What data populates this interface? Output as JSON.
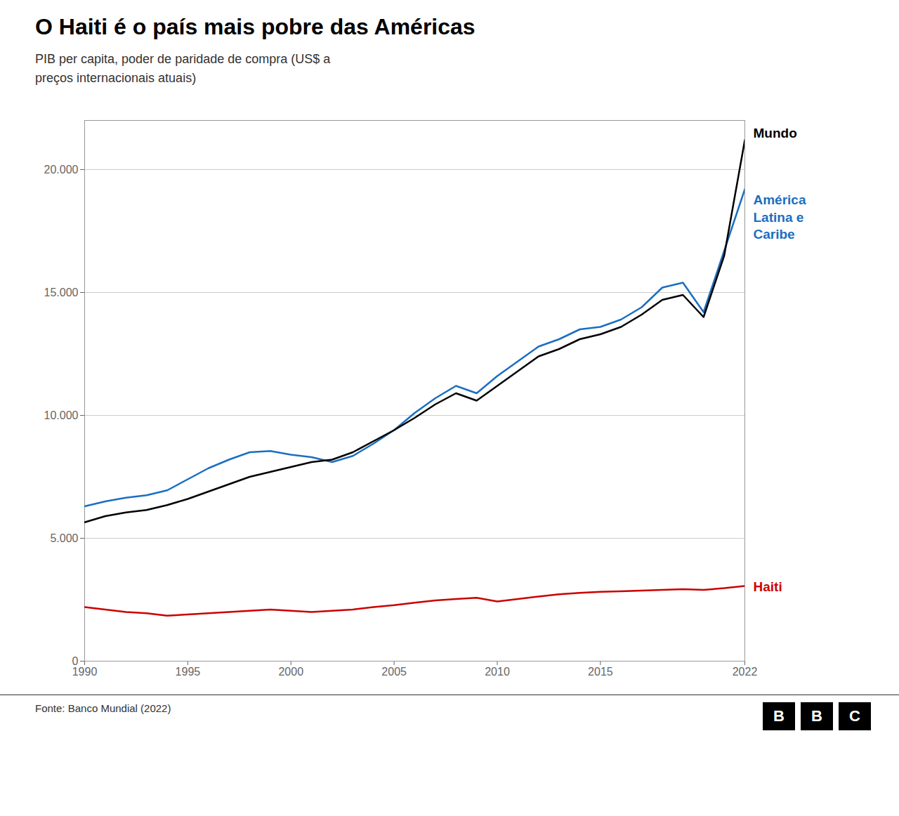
{
  "chart_data": {
    "type": "line",
    "title": "O Haiti é o país mais pobre das Américas",
    "subtitle": "PIB per capita, poder de paridade de compra (US$ a\npreços internacionais atuais)",
    "source": "Fonte: Banco Mundial (2022)",
    "annotations": [
      "BBC"
    ],
    "x": [
      1990,
      1991,
      1992,
      1993,
      1994,
      1995,
      1996,
      1997,
      1998,
      1999,
      2000,
      2001,
      2002,
      2003,
      2004,
      2005,
      2006,
      2007,
      2008,
      2009,
      2010,
      2011,
      2012,
      2013,
      2014,
      2015,
      2016,
      2017,
      2018,
      2019,
      2020,
      2021,
      2022
    ],
    "series": [
      {
        "name": "América\nLatina e\nCaribe",
        "color": "#1B6EC2",
        "values": [
          6300,
          6500,
          6650,
          6750,
          6950,
          7400,
          7850,
          8200,
          8500,
          8550,
          8400,
          8300,
          8100,
          8350,
          8850,
          9400,
          10100,
          10700,
          11200,
          10900,
          11600,
          12200,
          12800,
          13100,
          13500,
          13600,
          13900,
          14400,
          15200,
          15400,
          14200,
          16700,
          19200
        ]
      },
      {
        "name": "Mundo",
        "color": "#000000",
        "values": [
          5650,
          5900,
          6050,
          6150,
          6350,
          6600,
          6900,
          7200,
          7500,
          7700,
          7900,
          8100,
          8200,
          8500,
          8950,
          9400,
          9900,
          10450,
          10900,
          10600,
          11200,
          11800,
          12400,
          12700,
          13100,
          13300,
          13600,
          14100,
          14700,
          14900,
          14000,
          16500,
          21200
        ]
      },
      {
        "name": "Haiti",
        "color": "#CC0000",
        "values": [
          2200,
          2100,
          2000,
          1950,
          1850,
          1900,
          1950,
          2000,
          2050,
          2100,
          2050,
          2000,
          2050,
          2100,
          2200,
          2280,
          2380,
          2470,
          2530,
          2580,
          2430,
          2530,
          2630,
          2720,
          2780,
          2820,
          2840,
          2870,
          2900,
          2930,
          2900,
          2970,
          3060
        ]
      }
    ],
    "xlim": [
      1990,
      2022
    ],
    "xticks": [
      1990,
      1995,
      2000,
      2005,
      2010,
      2015,
      2022
    ],
    "ylim": [
      0,
      22000
    ],
    "yticks": [
      0,
      {
        "value": 5000,
        "label": "5.000"
      },
      {
        "value": 10000,
        "label": "10.000"
      },
      {
        "value": 15000,
        "label": "15.000"
      },
      {
        "value": 20000,
        "label": "20.000"
      }
    ],
    "grid": true
  }
}
